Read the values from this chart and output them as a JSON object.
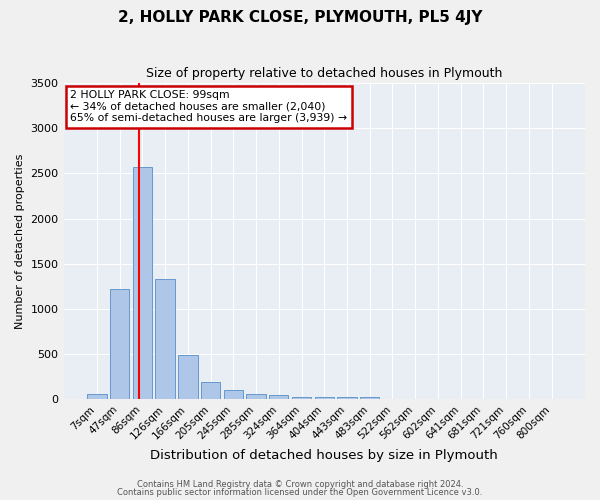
{
  "title": "2, HOLLY PARK CLOSE, PLYMOUTH, PL5 4JY",
  "subtitle": "Size of property relative to detached houses in Plymouth",
  "xlabel": "Distribution of detached houses by size in Plymouth",
  "ylabel": "Number of detached properties",
  "bar_labels": [
    "7sqm",
    "47sqm",
    "86sqm",
    "126sqm",
    "166sqm",
    "205sqm",
    "245sqm",
    "285sqm",
    "324sqm",
    "364sqm",
    "404sqm",
    "443sqm",
    "483sqm",
    "522sqm",
    "562sqm",
    "602sqm",
    "641sqm",
    "681sqm",
    "721sqm",
    "760sqm",
    "800sqm"
  ],
  "bar_values": [
    55,
    1220,
    2570,
    1330,
    490,
    195,
    110,
    55,
    45,
    30,
    30,
    30,
    30,
    0,
    0,
    0,
    0,
    0,
    0,
    0,
    0
  ],
  "bar_color": "#aec6e8",
  "bar_edge_color": "#6699cc",
  "background_color": "#e8eef4",
  "grid_color": "#ffffff",
  "red_line_label": "2 HOLLY PARK CLOSE: 99sqm",
  "annotation_line1": "← 34% of detached houses are smaller (2,040)",
  "annotation_line2": "65% of semi-detached houses are larger (3,939) →",
  "annotation_box_color": "#ffffff",
  "annotation_box_edge_color": "#cc0000",
  "ylim": [
    0,
    3500
  ],
  "yticks": [
    0,
    500,
    1000,
    1500,
    2000,
    2500,
    3000,
    3500
  ],
  "footer1": "Contains HM Land Registry data © Crown copyright and database right 2024.",
  "footer2": "Contains public sector information licensed under the Open Government Licence v3.0.",
  "fig_facecolor": "#f0f0f0"
}
